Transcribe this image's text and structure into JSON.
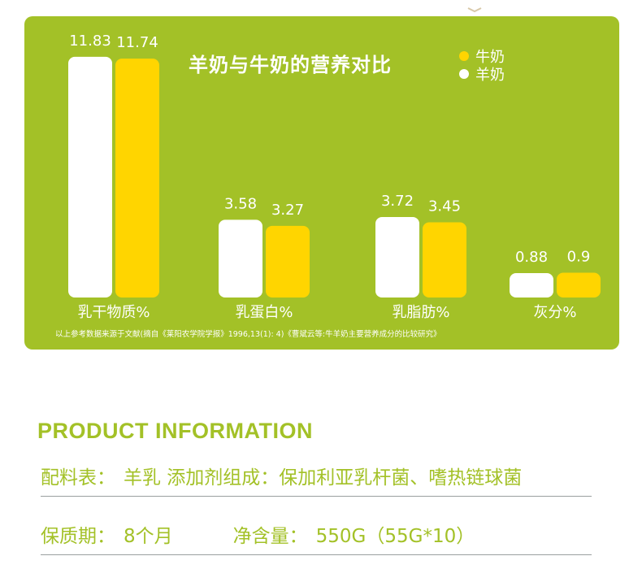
{
  "colors": {
    "panel": "#a3c127",
    "cow": "#ffd500",
    "goat": "#ffffff",
    "text_green": "#a3c127"
  },
  "chart_data": {
    "type": "bar",
    "title": "羊奶与牛奶的营养对比",
    "categories": [
      "乳干物质%",
      "乳蛋白%",
      "乳脂肪%",
      "灰分%"
    ],
    "series": [
      {
        "name": "羊奶",
        "values": [
          11.83,
          3.58,
          3.72,
          0.88
        ],
        "value_labels": [
          "11.83",
          "3.58",
          "3.72",
          "0.88"
        ],
        "color": "#ffffff"
      },
      {
        "name": "牛奶",
        "values": [
          11.74,
          3.27,
          3.45,
          0.9
        ],
        "value_labels": [
          "11.74",
          "3.27",
          "3.45",
          "0.9"
        ],
        "color": "#ffd500"
      }
    ],
    "legend": {
      "items": [
        "牛奶",
        "羊奶"
      ],
      "position": "top-right"
    },
    "grid": false,
    "source_note": "以上参考数据来源于文献(摘自《莱阳农学院学报》1996,13(1): 4)《曹斌云等:牛羊奶主要营养成分的比较研究》"
  },
  "product_info": {
    "heading": "PRODUCT INFORMATION",
    "ingredients_label": "配料表：",
    "ingredients_value": "羊乳  添加剂组成：保加利亚乳杆菌、嗜热链球菌",
    "shelf_life_label": "保质期：",
    "shelf_life_value": "8个月",
    "net_content_label": "净含量：",
    "net_content_value": "550G（55G*10）"
  }
}
